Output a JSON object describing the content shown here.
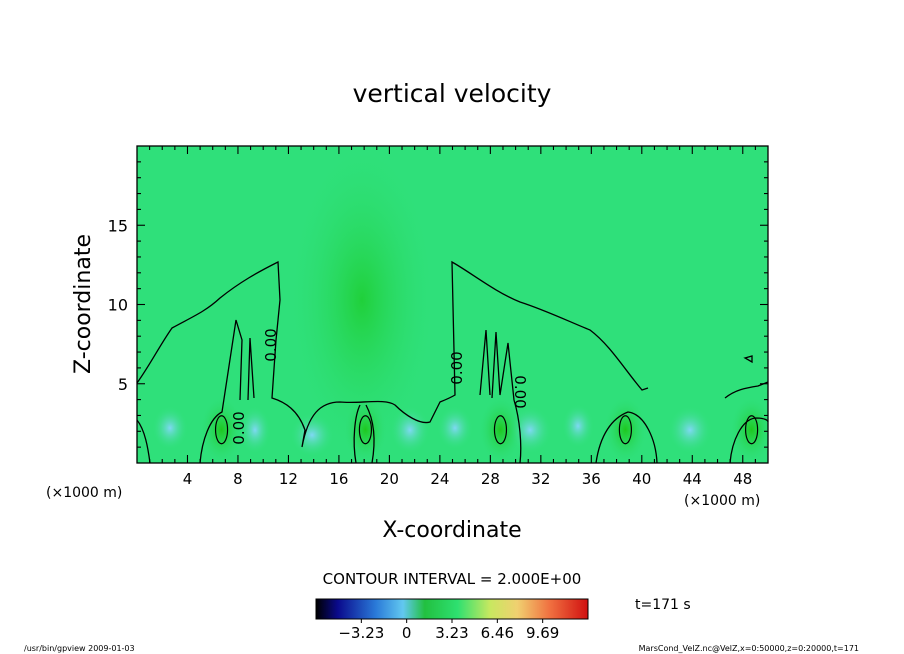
{
  "chart_data": {
    "type": "heatmap",
    "title": "vertical velocity",
    "xlabel": "X-coordinate",
    "ylabel": "Z-coordinate",
    "x_unit_left": "(×1000 m)",
    "x_unit_right": "(×1000 m)",
    "xlim": [
      0,
      50
    ],
    "ylim": [
      0,
      20
    ],
    "x_ticks": [
      4,
      8,
      12,
      16,
      20,
      24,
      28,
      32,
      36,
      40,
      44,
      48
    ],
    "y_ticks": [
      5,
      10,
      15
    ],
    "contour_interval_label": "CONTOUR INTERVAL = 2.000E+00",
    "contour_labels": [
      "0.00",
      "0.00",
      "0.00",
      "0.00"
    ],
    "time_label": "t=171 s",
    "colorbar": {
      "ticks": [
        "−3.23",
        "0",
        "3.23",
        "6.46",
        "9.69"
      ],
      "range": [
        -6.46,
        12.92
      ]
    },
    "updraft_cores_x": [
      6.7,
      18.1,
      28.8,
      38.7,
      48.7
    ],
    "footer_left": "/usr/bin/gpview   2009-01-03",
    "footer_right": "MarsCond_VelZ.nc@VelZ,x=0:50000,z=0:20000,t=171"
  },
  "colors": {
    "background_field": "#2fe07a",
    "updraft": "#18c820",
    "downdraft": "#7ad8f0"
  }
}
